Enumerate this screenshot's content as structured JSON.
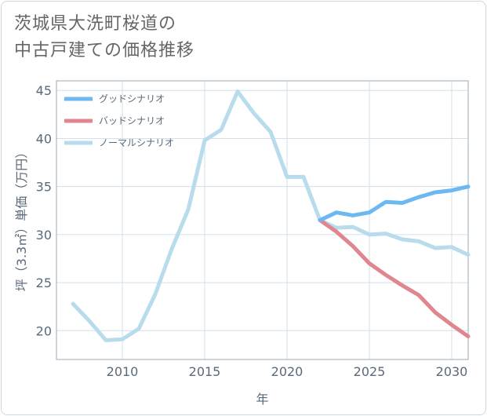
{
  "title_lines": [
    "茨城県大洗町桜道の",
    "中古戸建ての価格推移"
  ],
  "chart_data": {
    "type": "line",
    "title": "茨城県大洗町桜道の中古戸建ての価格推移",
    "xlabel": "年",
    "ylabel": "坪（3.3㎡）単価（万円）",
    "xlim": [
      2006,
      2031
    ],
    "ylim": [
      17,
      46
    ],
    "xticks": [
      2010,
      2015,
      2020,
      2025,
      2030
    ],
    "yticks": [
      20,
      25,
      30,
      35,
      40,
      45
    ],
    "grid": true,
    "legend_position": "top-left",
    "series": [
      {
        "name": "グッドシナリオ",
        "color": "#6cb8f0",
        "x": [
          2022,
          2023,
          2024,
          2025,
          2026,
          2027,
          2028,
          2029,
          2030,
          2031
        ],
        "values": [
          31.5,
          32.3,
          32.0,
          32.3,
          33.4,
          33.3,
          33.9,
          34.4,
          34.6,
          35.0
        ]
      },
      {
        "name": "バッドシナリオ",
        "color": "#e0868f",
        "x": [
          2022,
          2023,
          2024,
          2025,
          2026,
          2027,
          2028,
          2029,
          2030,
          2031
        ],
        "values": [
          31.5,
          30.3,
          28.8,
          27.0,
          25.8,
          24.7,
          23.7,
          21.9,
          20.6,
          19.4
        ]
      },
      {
        "name": "ノーマルシナリオ",
        "color": "#b8dcec",
        "x": [
          2007,
          2008,
          2009,
          2010,
          2011,
          2012,
          2013,
          2014,
          2015,
          2016,
          2017,
          2018,
          2019,
          2020,
          2021,
          2022,
          2023,
          2024,
          2025,
          2026,
          2027,
          2028,
          2029,
          2030,
          2031
        ],
        "values": [
          22.8,
          21.0,
          19.0,
          19.1,
          20.2,
          23.8,
          28.5,
          32.6,
          39.8,
          40.9,
          44.9,
          42.6,
          40.7,
          36.0,
          36.0,
          31.5,
          30.7,
          30.8,
          30.0,
          30.1,
          29.5,
          29.3,
          28.6,
          28.7,
          27.9
        ]
      }
    ]
  }
}
